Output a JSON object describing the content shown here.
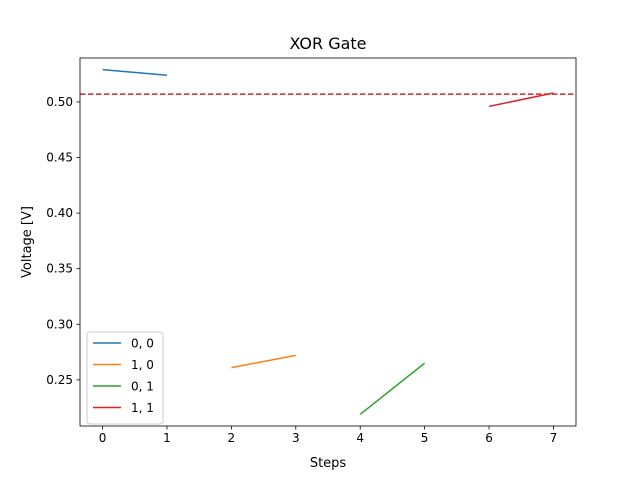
{
  "chart_data": {
    "type": "line",
    "title": "XOR Gate",
    "xlabel": "Steps",
    "ylabel": "Voltage [V]",
    "xlim": [
      -0.35,
      7.35
    ],
    "ylim": [
      0.2085,
      0.5395
    ],
    "xticks": [
      0,
      1,
      2,
      3,
      4,
      5,
      6,
      7
    ],
    "xtick_labels": [
      "0",
      "1",
      "2",
      "3",
      "4",
      "5",
      "6",
      "7"
    ],
    "yticks": [
      0.25,
      0.3,
      0.35,
      0.4,
      0.45,
      0.5
    ],
    "ytick_labels": [
      "0.25",
      "0.30",
      "0.35",
      "0.40",
      "0.45",
      "0.50"
    ],
    "grid": false,
    "legend_position": "lower-left",
    "series": [
      {
        "name": "0, 0",
        "color": "#1f77b4",
        "x": [
          0,
          1
        ],
        "y": [
          0.529,
          0.524
        ]
      },
      {
        "name": "1, 0",
        "color": "#ff7f0e",
        "x": [
          2,
          3
        ],
        "y": [
          0.261,
          0.272
        ]
      },
      {
        "name": "0, 1",
        "color": "#2ca02c",
        "x": [
          4,
          5
        ],
        "y": [
          0.219,
          0.265
        ]
      },
      {
        "name": "1, 1",
        "color": "#d62728",
        "x": [
          6,
          7
        ],
        "y": [
          0.496,
          0.508
        ]
      }
    ],
    "reference_line": {
      "y": 0.507,
      "color": "#d62728",
      "style": "dashed"
    }
  }
}
